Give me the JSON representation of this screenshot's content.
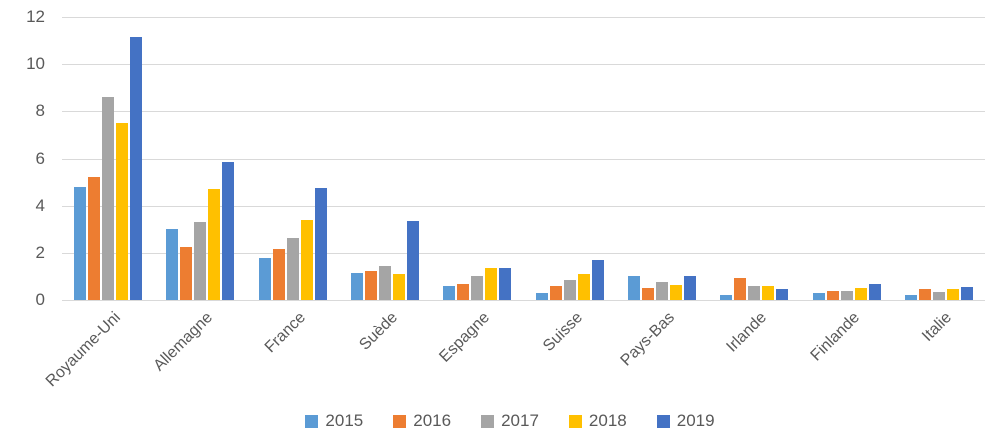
{
  "chart_data": {
    "type": "bar",
    "title": "",
    "xlabel": "",
    "ylabel": "",
    "categories": [
      "Royaume-Uni",
      "Allemagne",
      "France",
      "Suède",
      "Espagne",
      "Suisse",
      "Pays-Bas",
      "Irlande",
      "Finlande",
      "Italie"
    ],
    "series": [
      {
        "name": "2015",
        "color": "#5B9BD5",
        "values": [
          4.8,
          3.0,
          1.8,
          1.15,
          0.6,
          0.3,
          1.0,
          0.2,
          0.3,
          0.2
        ]
      },
      {
        "name": "2016",
        "color": "#ED7D31",
        "values": [
          5.2,
          2.25,
          2.15,
          1.25,
          0.7,
          0.6,
          0.5,
          0.95,
          0.4,
          0.45
        ]
      },
      {
        "name": "2017",
        "color": "#A5A5A5",
        "values": [
          8.6,
          3.3,
          2.65,
          1.45,
          1.0,
          0.85,
          0.75,
          0.6,
          0.4,
          0.35
        ]
      },
      {
        "name": "2018",
        "color": "#FFC000",
        "values": [
          7.5,
          4.7,
          3.4,
          1.1,
          1.35,
          1.1,
          0.65,
          0.6,
          0.5,
          0.45
        ]
      },
      {
        "name": "2019",
        "color": "#4472C4",
        "values": [
          11.15,
          5.85,
          4.75,
          3.35,
          1.35,
          1.7,
          1.0,
          0.45,
          0.7,
          0.55
        ]
      }
    ],
    "ylim": [
      0,
      12
    ],
    "yticks": [
      0,
      2,
      4,
      6,
      8,
      10,
      12
    ],
    "grid": true,
    "legend_position": "bottom",
    "colors": {
      "axis_text": "#595959",
      "gridline": "#D9D9D9",
      "background": "#FFFFFF"
    }
  }
}
